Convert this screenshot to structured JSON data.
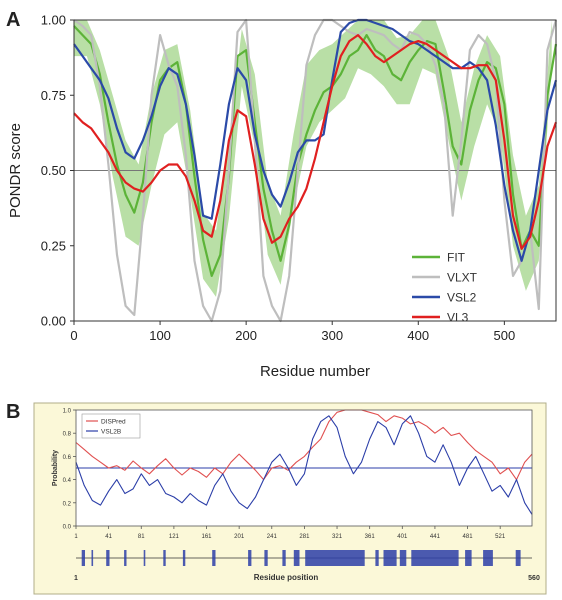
{
  "chart_data": [
    {
      "panel": "A",
      "type": "line",
      "xlabel": "Residue number",
      "ylabel": "PONDR score",
      "xlim": [
        0,
        560
      ],
      "ylim": [
        0,
        1
      ],
      "xticks": [
        "0",
        "100",
        "200",
        "300",
        "400",
        "500"
      ],
      "yticks": [
        "0.00",
        "0.25",
        "0.50",
        "0.75",
        "1.00"
      ],
      "threshold": 0.5,
      "grid": false,
      "legend_position": "bottom-right",
      "band": {
        "series": "FIT",
        "color": "#b9dfa6",
        "x": [
          0,
          15,
          30,
          45,
          60,
          75,
          90,
          105,
          120,
          135,
          150,
          165,
          180,
          195,
          210,
          225,
          240,
          255,
          270,
          285,
          300,
          315,
          330,
          345,
          360,
          375,
          390,
          405,
          420,
          435,
          450,
          465,
          480,
          495,
          510,
          525,
          540,
          555
        ],
        "lower": [
          0.88,
          0.88,
          0.72,
          0.48,
          0.28,
          0.25,
          0.45,
          0.62,
          0.66,
          0.42,
          0.14,
          0.08,
          0.34,
          0.78,
          0.58,
          0.22,
          0.12,
          0.38,
          0.58,
          0.66,
          0.7,
          0.74,
          0.84,
          0.82,
          0.78,
          0.72,
          0.72,
          0.84,
          0.82,
          0.6,
          0.4,
          0.58,
          0.72,
          0.62,
          0.25,
          0.1,
          0.2,
          0.86
        ],
        "upper": [
          1.0,
          1.0,
          0.9,
          0.75,
          0.6,
          0.52,
          0.75,
          0.9,
          0.92,
          0.7,
          0.36,
          0.3,
          0.6,
          0.97,
          0.82,
          0.46,
          0.35,
          0.62,
          0.85,
          0.9,
          0.92,
          0.96,
          1.0,
          1.0,
          1.0,
          0.94,
          0.95,
          1.0,
          1.0,
          0.88,
          0.66,
          0.84,
          0.95,
          0.88,
          0.55,
          0.35,
          0.45,
          1.0
        ]
      },
      "series": [
        {
          "name": "FIT",
          "color": "#5cb338",
          "x": [
            0,
            10,
            20,
            30,
            40,
            50,
            60,
            70,
            80,
            90,
            100,
            110,
            120,
            130,
            140,
            150,
            160,
            170,
            180,
            190,
            200,
            210,
            220,
            230,
            240,
            250,
            260,
            270,
            280,
            290,
            300,
            310,
            320,
            330,
            340,
            350,
            360,
            370,
            380,
            390,
            400,
            410,
            420,
            430,
            440,
            450,
            460,
            470,
            480,
            490,
            500,
            510,
            520,
            530,
            540,
            550,
            560
          ],
          "y": [
            0.98,
            0.95,
            0.92,
            0.82,
            0.66,
            0.52,
            0.42,
            0.36,
            0.46,
            0.66,
            0.8,
            0.84,
            0.86,
            0.72,
            0.48,
            0.27,
            0.15,
            0.22,
            0.48,
            0.88,
            0.9,
            0.66,
            0.44,
            0.3,
            0.2,
            0.32,
            0.52,
            0.62,
            0.7,
            0.76,
            0.78,
            0.82,
            0.88,
            0.9,
            0.95,
            0.9,
            0.88,
            0.82,
            0.8,
            0.86,
            0.9,
            0.93,
            0.92,
            0.76,
            0.58,
            0.52,
            0.7,
            0.8,
            0.86,
            0.84,
            0.72,
            0.42,
            0.24,
            0.3,
            0.25,
            0.75,
            0.92
          ]
        },
        {
          "name": "VLXT",
          "color": "#bebebe",
          "x": [
            0,
            10,
            20,
            30,
            40,
            50,
            60,
            70,
            80,
            90,
            100,
            110,
            120,
            130,
            140,
            150,
            160,
            170,
            180,
            190,
            200,
            210,
            220,
            230,
            240,
            250,
            260,
            270,
            280,
            290,
            300,
            310,
            320,
            330,
            340,
            350,
            360,
            370,
            380,
            390,
            400,
            410,
            420,
            430,
            440,
            450,
            460,
            470,
            480,
            490,
            500,
            510,
            520,
            530,
            540,
            550,
            560
          ],
          "y": [
            1.0,
            0.98,
            0.95,
            0.78,
            0.52,
            0.22,
            0.05,
            0.02,
            0.35,
            0.75,
            0.95,
            0.85,
            0.78,
            0.55,
            0.2,
            0.05,
            0.0,
            0.1,
            0.5,
            0.96,
            1.0,
            0.6,
            0.15,
            0.05,
            0.0,
            0.15,
            0.5,
            0.85,
            0.95,
            1.0,
            1.0,
            0.98,
            0.96,
            0.95,
            0.97,
            0.96,
            0.95,
            0.92,
            0.9,
            0.96,
            0.95,
            0.92,
            0.85,
            0.72,
            0.35,
            0.6,
            0.9,
            0.95,
            0.92,
            0.8,
            0.4,
            0.15,
            0.2,
            0.3,
            0.04,
            0.9,
            1.0
          ]
        },
        {
          "name": "VSL2",
          "color": "#2b4aa8",
          "x": [
            0,
            10,
            20,
            30,
            40,
            50,
            60,
            70,
            80,
            90,
            100,
            110,
            120,
            130,
            140,
            150,
            160,
            170,
            180,
            190,
            200,
            210,
            220,
            230,
            240,
            250,
            260,
            270,
            280,
            290,
            300,
            310,
            320,
            330,
            340,
            350,
            360,
            370,
            380,
            390,
            400,
            410,
            420,
            430,
            440,
            450,
            460,
            470,
            480,
            490,
            500,
            510,
            520,
            530,
            540,
            550,
            560
          ],
          "y": [
            0.92,
            0.88,
            0.84,
            0.8,
            0.74,
            0.64,
            0.56,
            0.54,
            0.6,
            0.68,
            0.78,
            0.84,
            0.82,
            0.72,
            0.55,
            0.35,
            0.34,
            0.52,
            0.72,
            0.84,
            0.8,
            0.62,
            0.5,
            0.42,
            0.38,
            0.46,
            0.56,
            0.6,
            0.6,
            0.62,
            0.8,
            0.96,
            0.99,
            1.0,
            1.0,
            0.99,
            0.98,
            0.97,
            0.95,
            0.93,
            0.92,
            0.9,
            0.88,
            0.86,
            0.84,
            0.84,
            0.86,
            0.84,
            0.8,
            0.65,
            0.45,
            0.3,
            0.2,
            0.3,
            0.5,
            0.7,
            0.8
          ]
        },
        {
          "name": "VL3",
          "color": "#e02020",
          "x": [
            0,
            10,
            20,
            30,
            40,
            50,
            60,
            70,
            80,
            90,
            100,
            110,
            120,
            130,
            140,
            150,
            160,
            170,
            180,
            190,
            200,
            210,
            220,
            230,
            240,
            250,
            260,
            270,
            280,
            290,
            300,
            310,
            320,
            330,
            340,
            350,
            360,
            370,
            380,
            390,
            400,
            410,
            420,
            430,
            440,
            450,
            460,
            470,
            480,
            490,
            500,
            510,
            520,
            530,
            540,
            550,
            560
          ],
          "y": [
            0.69,
            0.66,
            0.64,
            0.6,
            0.56,
            0.5,
            0.46,
            0.44,
            0.43,
            0.46,
            0.5,
            0.52,
            0.52,
            0.48,
            0.4,
            0.3,
            0.28,
            0.4,
            0.6,
            0.7,
            0.68,
            0.52,
            0.34,
            0.26,
            0.28,
            0.34,
            0.38,
            0.44,
            0.54,
            0.66,
            0.78,
            0.88,
            0.93,
            0.95,
            0.92,
            0.88,
            0.86,
            0.88,
            0.9,
            0.92,
            0.93,
            0.92,
            0.9,
            0.88,
            0.86,
            0.84,
            0.84,
            0.85,
            0.85,
            0.8,
            0.6,
            0.35,
            0.24,
            0.28,
            0.4,
            0.58,
            0.66
          ]
        }
      ]
    },
    {
      "panel": "B",
      "type": "line",
      "xlabel": "Probability",
      "ylabel": "Probability",
      "residue_label": "Residue position",
      "residue_range": [
        "1",
        "560"
      ],
      "xlim": [
        1,
        560
      ],
      "ylim": [
        0,
        1
      ],
      "xticks": [
        "1",
        "41",
        "81",
        "121",
        "161",
        "201",
        "241",
        "281",
        "321",
        "361",
        "401",
        "441",
        "481",
        "521"
      ],
      "yticks": [
        "0.0",
        "0.2",
        "0.4",
        "0.6",
        "0.8",
        "1.0"
      ],
      "threshold": 0.5,
      "grid": false,
      "legend_position": "top-left",
      "background": "#fbf8d8",
      "series": [
        {
          "name": "DISPred",
          "color": "#e05050",
          "x": [
            1,
            11,
            21,
            31,
            41,
            51,
            61,
            71,
            81,
            91,
            101,
            111,
            121,
            131,
            141,
            151,
            161,
            171,
            181,
            191,
            201,
            211,
            221,
            231,
            241,
            251,
            261,
            271,
            281,
            291,
            301,
            311,
            321,
            331,
            341,
            351,
            361,
            371,
            381,
            391,
            401,
            411,
            421,
            431,
            441,
            451,
            461,
            471,
            481,
            491,
            501,
            511,
            521,
            531,
            541,
            551,
            560
          ],
          "y": [
            0.72,
            0.66,
            0.6,
            0.55,
            0.5,
            0.52,
            0.48,
            0.56,
            0.5,
            0.45,
            0.52,
            0.58,
            0.5,
            0.44,
            0.5,
            0.47,
            0.42,
            0.5,
            0.45,
            0.55,
            0.62,
            0.55,
            0.48,
            0.4,
            0.5,
            0.52,
            0.48,
            0.55,
            0.6,
            0.68,
            0.75,
            0.9,
            0.98,
            1.0,
            1.0,
            1.0,
            0.98,
            0.96,
            0.9,
            0.95,
            0.93,
            0.88,
            0.9,
            0.86,
            0.8,
            0.85,
            0.78,
            0.8,
            0.72,
            0.65,
            0.6,
            0.55,
            0.45,
            0.5,
            0.4,
            0.55,
            0.62
          ]
        },
        {
          "name": "VSL2B",
          "color": "#2b3ea8",
          "x": [
            1,
            11,
            21,
            31,
            41,
            51,
            61,
            71,
            81,
            91,
            101,
            111,
            121,
            131,
            141,
            151,
            161,
            171,
            181,
            191,
            201,
            211,
            221,
            231,
            241,
            251,
            261,
            271,
            281,
            291,
            301,
            311,
            321,
            331,
            341,
            351,
            361,
            371,
            381,
            391,
            401,
            411,
            421,
            431,
            441,
            451,
            461,
            471,
            481,
            491,
            501,
            511,
            521,
            531,
            541,
            551,
            560
          ],
          "y": [
            0.55,
            0.35,
            0.22,
            0.18,
            0.3,
            0.4,
            0.28,
            0.32,
            0.45,
            0.35,
            0.4,
            0.28,
            0.25,
            0.2,
            0.28,
            0.22,
            0.18,
            0.35,
            0.45,
            0.3,
            0.2,
            0.15,
            0.25,
            0.4,
            0.55,
            0.62,
            0.5,
            0.35,
            0.45,
            0.75,
            0.9,
            0.95,
            0.85,
            0.6,
            0.45,
            0.55,
            0.75,
            0.9,
            0.85,
            0.7,
            0.88,
            0.95,
            0.8,
            0.6,
            0.55,
            0.7,
            0.55,
            0.35,
            0.5,
            0.6,
            0.45,
            0.3,
            0.35,
            0.25,
            0.4,
            0.2,
            0.1
          ]
        }
      ],
      "disorder_track": {
        "color": "#2b3ea8",
        "regions": [
          [
            8,
            12
          ],
          [
            20,
            22
          ],
          [
            38,
            42
          ],
          [
            60,
            63
          ],
          [
            84,
            86
          ],
          [
            108,
            111
          ],
          [
            132,
            135
          ],
          [
            168,
            172
          ],
          [
            212,
            216
          ],
          [
            232,
            236
          ],
          [
            254,
            258
          ],
          [
            268,
            275
          ],
          [
            282,
            355
          ],
          [
            368,
            372
          ],
          [
            378,
            394
          ],
          [
            398,
            406
          ],
          [
            412,
            470
          ],
          [
            478,
            486
          ],
          [
            500,
            512
          ],
          [
            540,
            546
          ]
        ]
      }
    }
  ],
  "labels": {
    "panel_a": "A",
    "panel_b": "B"
  }
}
